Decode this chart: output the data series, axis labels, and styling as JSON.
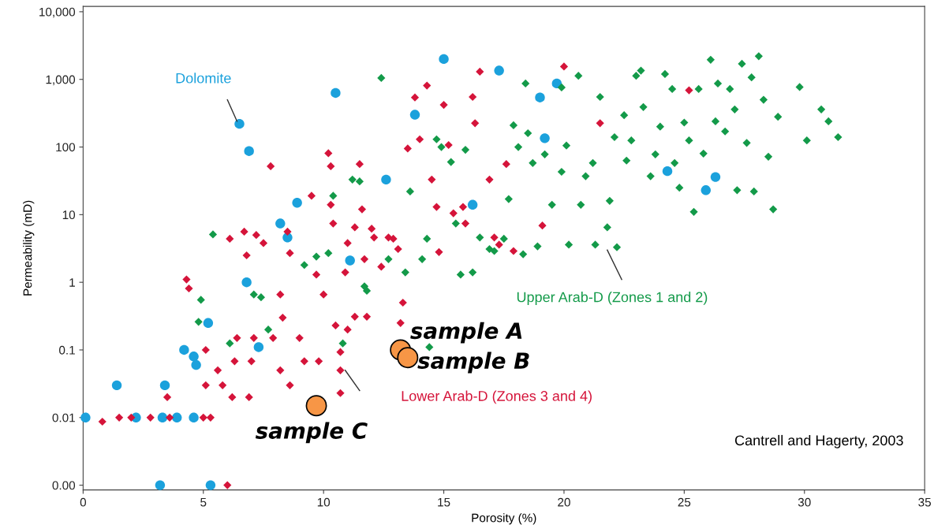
{
  "chart_data": {
    "type": "scatter",
    "xlabel": "Porosity (%)",
    "ylabel": "Permeability (mD)",
    "xlim": [
      0,
      35
    ],
    "xticks": [
      0,
      5,
      10,
      15,
      20,
      25,
      30,
      35
    ],
    "log": "y",
    "ylim": [
      0.00085,
      12000
    ],
    "yticks": [
      {
        "value": 0.001,
        "label": "0.00"
      },
      0.01,
      0.1,
      1,
      10,
      100,
      {
        "value": 1000,
        "label": "1,000"
      },
      {
        "value": 10000,
        "label": "10,000"
      }
    ],
    "grid": false,
    "legend": false,
    "series": [
      {
        "name": "Dolomite",
        "color": "#1ba1dc",
        "marker": "circle",
        "x": [
          0.1,
          1.4,
          2.2,
          3.2,
          3.4,
          3.3,
          3.9,
          4.6,
          4.2,
          4.6,
          4.7,
          5.2,
          5.3,
          6.8,
          7.3,
          6.5,
          6.9,
          8.2,
          8.5,
          8.9,
          10.5,
          11.1,
          12.6,
          13.8,
          15.0,
          17.3,
          16.2,
          19.2,
          19.0,
          19.7,
          24.3,
          25.9,
          26.3
        ],
        "values": [
          0.01,
          0.03,
          0.01,
          0.001,
          0.03,
          0.01,
          0.01,
          0.01,
          0.1,
          0.08,
          0.06,
          0.25,
          0.001,
          1,
          0.11,
          220,
          87,
          7.4,
          4.6,
          15,
          630,
          2.1,
          33,
          300,
          2000,
          1350,
          14,
          135,
          540,
          870,
          44,
          23,
          36
        ]
      },
      {
        "name": "Upper Arab-D (Zones 1 and 2)",
        "color": "#139a49",
        "marker": "diamond",
        "x": [
          4.8,
          4.9,
          5.4,
          6.1,
          7.1,
          7.4,
          7.7,
          9.2,
          9.7,
          10.2,
          10.4,
          10.8,
          11.2,
          11.5,
          11.7,
          11.8,
          12.4,
          12.7,
          13.4,
          13.6,
          14.1,
          14.3,
          14.4,
          14.7,
          14.9,
          15.3,
          15.5,
          15.7,
          15.9,
          16.2,
          16.5,
          16.9,
          17.1,
          17.5,
          17.7,
          17.9,
          18.1,
          18.3,
          18.4,
          18.5,
          18.7,
          18.9,
          19.2,
          19.5,
          19.9,
          19.9,
          20.1,
          20.2,
          20.6,
          20.7,
          20.9,
          21.2,
          21.3,
          21.5,
          21.8,
          21.9,
          22.1,
          22.2,
          22.5,
          22.6,
          22.8,
          23.0,
          23.2,
          23.3,
          23.6,
          23.8,
          24.0,
          24.2,
          24.5,
          24.6,
          24.8,
          25.0,
          25.2,
          25.4,
          25.6,
          25.8,
          26.1,
          26.3,
          26.4,
          26.7,
          26.9,
          27.1,
          27.2,
          27.4,
          27.6,
          27.8,
          27.9,
          28.1,
          28.3,
          28.5,
          28.7,
          28.9,
          29.8,
          30.1,
          30.7,
          31.0,
          31.4
        ],
        "values": [
          0.26,
          0.55,
          5.1,
          0.125,
          0.66,
          0.6,
          0.2,
          1.8,
          2.4,
          2.7,
          19,
          0.125,
          33,
          31,
          0.87,
          0.75,
          1050,
          2.2,
          1.4,
          22,
          2.2,
          4.4,
          0.11,
          130,
          100,
          60,
          7.4,
          1.3,
          91,
          1.4,
          4.6,
          3.1,
          2.9,
          4.4,
          17,
          210,
          100,
          2.6,
          870,
          160,
          58,
          3.4,
          78,
          14,
          760,
          43,
          105,
          3.6,
          1130,
          14,
          37,
          58,
          3.6,
          550,
          6.5,
          16,
          140,
          3.3,
          295,
          63,
          125,
          1130,
          1350,
          390,
          37,
          78,
          200,
          1200,
          720,
          58,
          25,
          230,
          125,
          11,
          720,
          80,
          1950,
          240,
          870,
          170,
          720,
          360,
          23,
          1700,
          115,
          1070,
          22,
          2200,
          500,
          72,
          12,
          280,
          770,
          125,
          360,
          240,
          140
        ]
      },
      {
        "name": "Lower Arab-D (Zones 3 and 4)",
        "color": "#d5143a",
        "marker": "diamond",
        "x": [
          0.8,
          1.5,
          2.0,
          2.8,
          3.5,
          3.6,
          4.3,
          4.4,
          5.0,
          5.3,
          5.1,
          5.1,
          5.6,
          5.8,
          6.0,
          6.1,
          6.2,
          6.3,
          6.4,
          6.7,
          6.8,
          6.9,
          7.0,
          7.1,
          7.2,
          7.5,
          7.8,
          7.9,
          8.2,
          8.2,
          8.3,
          8.5,
          8.6,
          8.6,
          9.0,
          9.2,
          9.5,
          9.7,
          9.8,
          10.0,
          10.2,
          10.3,
          10.3,
          10.4,
          10.5,
          10.7,
          10.7,
          10.7,
          10.9,
          11.0,
          11.0,
          11.3,
          11.3,
          11.5,
          11.6,
          11.7,
          11.8,
          12.0,
          12.1,
          12.4,
          12.7,
          12.9,
          13.1,
          13.3,
          13.2,
          13.5,
          13.8,
          14.0,
          14.3,
          14.5,
          14.7,
          14.8,
          15.0,
          15.2,
          15.4,
          15.8,
          15.9,
          16.2,
          16.3,
          16.5,
          16.9,
          17.1,
          17.3,
          17.6,
          17.9,
          19.1,
          20.0,
          21.5,
          25.2
        ],
        "values": [
          0.0087,
          0.01,
          0.01,
          0.01,
          0.02,
          0.01,
          1.1,
          0.81,
          0.01,
          0.01,
          0.03,
          0.1,
          0.05,
          0.03,
          0.001,
          4.4,
          0.02,
          0.068,
          0.15,
          5.6,
          2.5,
          0.02,
          0.068,
          0.15,
          5,
          3.8,
          52,
          0.15,
          0.05,
          0.66,
          0.3,
          5.6,
          2.7,
          0.03,
          0.15,
          0.068,
          19,
          1.3,
          0.068,
          0.66,
          81,
          52,
          14,
          7.4,
          0.23,
          0.05,
          0.093,
          0.023,
          1.4,
          3.8,
          0.2,
          6.5,
          0.31,
          56,
          12,
          2.2,
          0.31,
          6.2,
          4.6,
          1.7,
          4.6,
          4.4,
          3.1,
          0.5,
          0.25,
          95,
          540,
          130,
          810,
          33,
          13,
          2.8,
          420,
          107,
          10.5,
          13,
          7.4,
          550,
          225,
          1300,
          33,
          4.6,
          3.6,
          56,
          2.9,
          6.9,
          1550,
          225,
          690
        ]
      },
      {
        "name": "sample A",
        "color": "#f79646",
        "marker": "circle",
        "x": [
          13.2
        ],
        "values": [
          0.1
        ]
      },
      {
        "name": "sample B",
        "color": "#f79646",
        "marker": "circle",
        "x": [
          13.5
        ],
        "values": [
          0.077
        ]
      },
      {
        "name": "sample C",
        "color": "#f79646",
        "marker": "circle",
        "x": [
          9.7
        ],
        "values": [
          0.015
        ]
      }
    ],
    "annotations": [
      "Cantrell and Hagerty, 2003"
    ]
  }
}
